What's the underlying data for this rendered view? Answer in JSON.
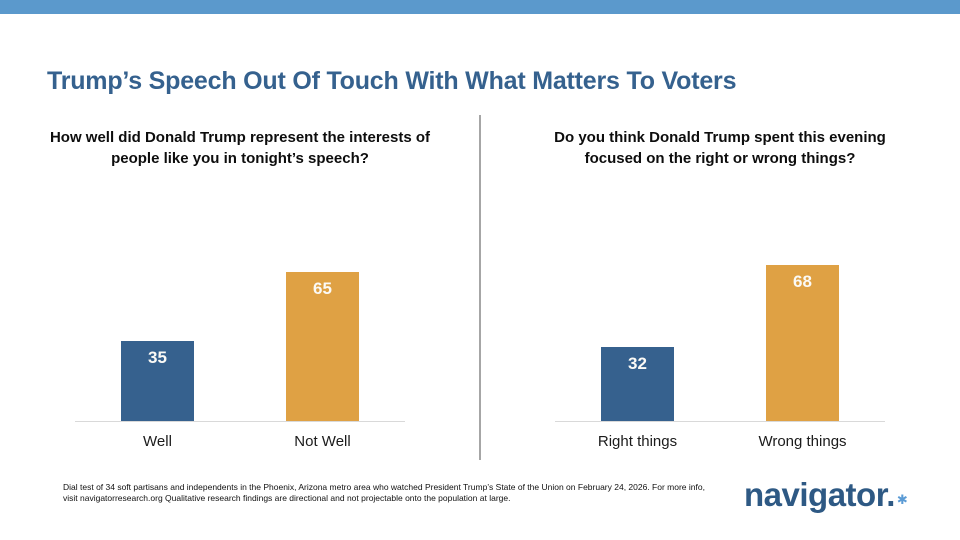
{
  "header": {
    "stripe_color": "#5B99CC",
    "title": "Trump’s Speech Out Of Touch With What Matters To Voters",
    "title_color": "#35618E"
  },
  "chart_data": [
    {
      "type": "bar",
      "title": "How well did Donald Trump represent the interests of people like you in tonight’s speech?",
      "title_lines": [
        "How well did Donald Trump represent the interests of",
        "people like you in tonight’s speech?"
      ],
      "categories": [
        "Well",
        "Not Well"
      ],
      "values": [
        35,
        65
      ],
      "series_colors": [
        "#36618E",
        "#DFA144"
      ],
      "value_labels": true,
      "ylim": [
        0,
        100
      ],
      "grid": false,
      "legend": "none"
    },
    {
      "type": "bar",
      "title": "Do you think Donald Trump spent this evening focused on the right or wrong things?",
      "title_lines": [
        "Do you think Donald Trump spent this evening",
        "focused on the right or wrong things?"
      ],
      "categories": [
        "Right things",
        "Wrong things"
      ],
      "values": [
        32,
        68
      ],
      "series_colors": [
        "#36618E",
        "#DFA144"
      ],
      "value_labels": true,
      "ylim": [
        0,
        100
      ],
      "grid": false,
      "legend": "none"
    }
  ],
  "footer": {
    "note": "Dial test of 34 soft partisans and independents in the Phoenix, Arizona metro area who watched President Trump’s State of the Union on February 24, 2026. For more info, visit navigatorresearch.org Qualitative research findings are directional and not projectable onto the population at large.",
    "logo_text": "navigator.",
    "logo_mark": "✱"
  }
}
